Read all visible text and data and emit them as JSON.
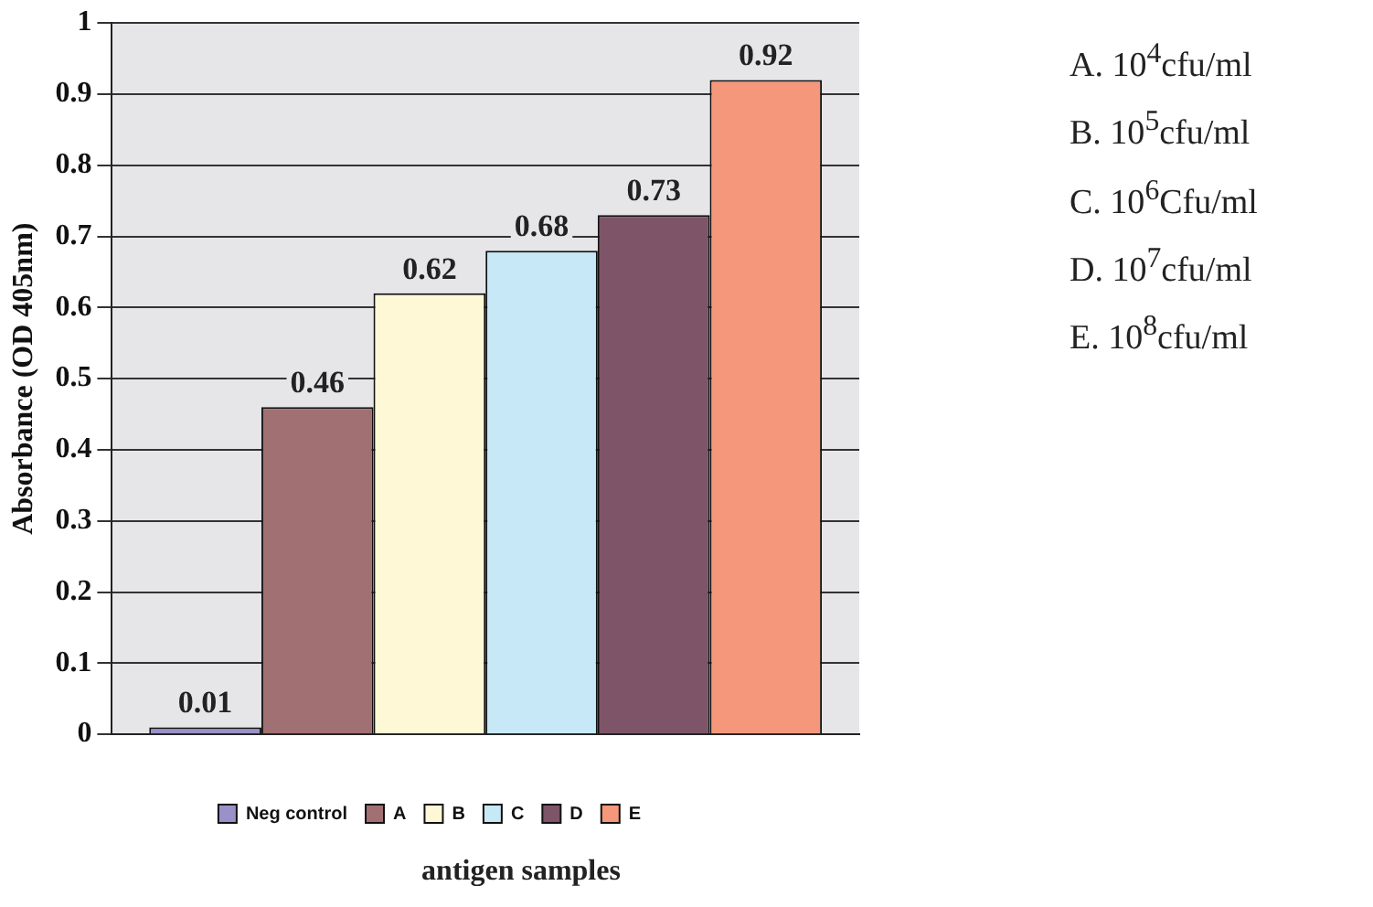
{
  "chart_data": {
    "type": "bar",
    "xlabel": "antigen samples",
    "ylabel": "Absorbance (OD 405nm)",
    "categories": [
      null
    ],
    "series": [
      {
        "name": "Neg control",
        "color": "#9b91c9",
        "values": [
          0.01
        ]
      },
      {
        "name": "A",
        "color": "#a17072",
        "values": [
          0.46
        ]
      },
      {
        "name": "B",
        "color": "#fff8d6",
        "values": [
          0.62
        ]
      },
      {
        "name": "C",
        "color": "#c6e8f7",
        "values": [
          0.68
        ]
      },
      {
        "name": "D",
        "color": "#7e5468",
        "values": [
          0.73
        ]
      },
      {
        "name": "E",
        "color": "#f5977a",
        "values": [
          0.92
        ]
      }
    ],
    "ylim": [
      0,
      1
    ],
    "yticks": [
      0,
      0.1,
      0.2,
      0.3,
      0.4,
      0.5,
      0.6,
      0.7,
      0.8,
      0.9,
      1
    ],
    "grid": "y",
    "legend": "bottom",
    "data_labels": true,
    "annotations": [
      "A.  10$^{4}$cfu/ml",
      "B.  10$^{5}$cfu/ml",
      "C.  10$^{6}$Cfu/ml",
      "D.  10$^{7}$cfu/ml",
      "E.  10$^{8}$cfu/ml"
    ]
  }
}
